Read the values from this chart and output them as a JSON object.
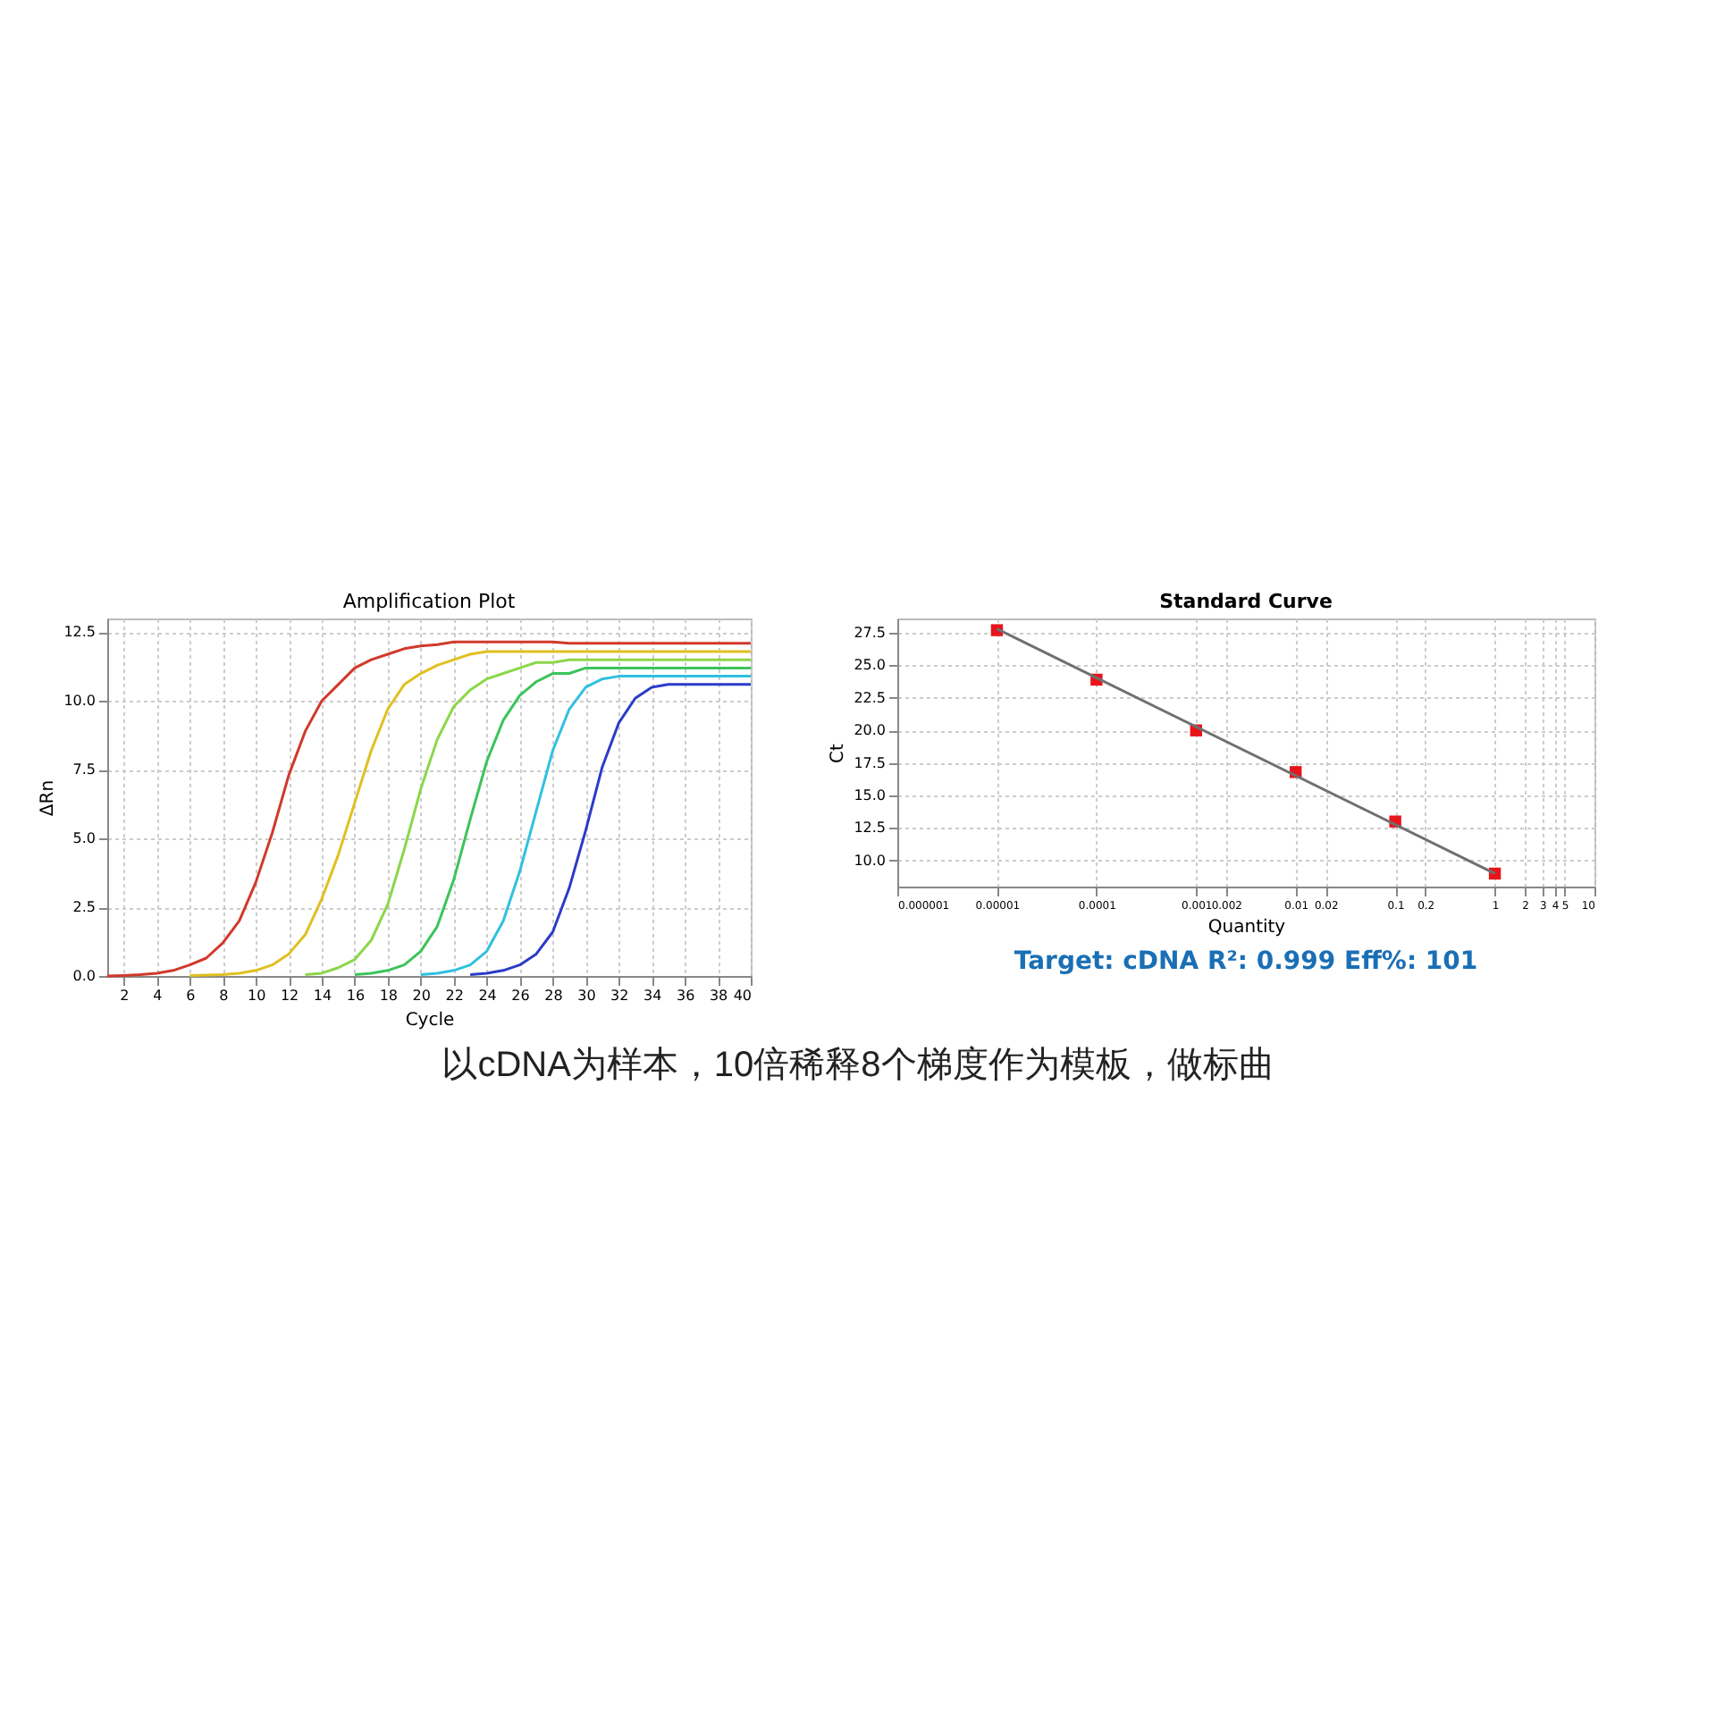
{
  "chart_data": [
    {
      "type": "line",
      "title": "Amplification Plot",
      "xlabel": "Cycle",
      "ylabel": "ΔRn",
      "grid": true,
      "marker": "none",
      "line_style": "solid",
      "x": [
        1,
        2,
        3,
        4,
        5,
        6,
        7,
        8,
        9,
        10,
        11,
        12,
        13,
        14,
        15,
        16,
        17,
        18,
        19,
        20,
        21,
        22,
        23,
        24,
        25,
        26,
        27,
        28,
        29,
        30,
        31,
        32,
        33,
        34,
        35,
        36,
        37,
        38,
        39,
        40
      ],
      "xlim": [
        1,
        40
      ],
      "xticks": [
        2,
        4,
        6,
        8,
        10,
        12,
        14,
        16,
        18,
        20,
        22,
        24,
        26,
        28,
        30,
        32,
        34,
        36,
        38,
        40
      ],
      "ylim": [
        0,
        13
      ],
      "yticks": [
        {
          "value": 0,
          "label": "0.0"
        },
        2.5,
        {
          "value": 5,
          "label": "5.0"
        },
        7.5,
        {
          "value": 10,
          "label": "10.0"
        },
        12.5
      ],
      "series": [
        {
          "color": "#d0392b",
          "values": [
            0,
            0.02,
            0.05,
            0.1,
            0.2,
            0.4,
            0.65,
            1.2,
            2.0,
            3.4,
            5.2,
            7.3,
            8.9,
            10.0,
            10.6,
            11.2,
            11.5,
            11.7,
            11.9,
            12.0,
            12.05,
            12.15,
            12.15,
            12.15,
            12.15,
            12.15,
            12.15,
            12.15,
            12.1,
            12.1,
            12.1,
            12.1,
            12.1,
            12.1,
            12.1,
            12.1,
            12.1,
            12.1,
            12.1,
            12.1
          ]
        },
        {
          "color": "#e0c020",
          "values": [
            null,
            null,
            null,
            null,
            null,
            0.02,
            0.03,
            0.05,
            0.1,
            0.2,
            0.4,
            0.8,
            1.5,
            2.8,
            4.4,
            6.3,
            8.2,
            9.7,
            10.6,
            11.0,
            11.3,
            11.5,
            11.7,
            11.8,
            11.8,
            11.8,
            11.8,
            11.8,
            11.8,
            11.8,
            11.8,
            11.8,
            11.8,
            11.8,
            11.8,
            11.8,
            11.8,
            11.8,
            11.8,
            11.8
          ]
        },
        {
          "color": "#8cd64a",
          "values": [
            null,
            null,
            null,
            null,
            null,
            null,
            null,
            null,
            null,
            null,
            null,
            null,
            0.05,
            0.1,
            0.3,
            0.6,
            1.3,
            2.6,
            4.6,
            6.8,
            8.6,
            9.8,
            10.4,
            10.8,
            11.0,
            11.2,
            11.4,
            11.4,
            11.5,
            11.5,
            11.5,
            11.5,
            11.5,
            11.5,
            11.5,
            11.5,
            11.5,
            11.5,
            11.5,
            11.5
          ]
        },
        {
          "color": "#3cc45a",
          "values": [
            null,
            null,
            null,
            null,
            null,
            null,
            null,
            null,
            null,
            null,
            null,
            null,
            null,
            null,
            null,
            0.05,
            0.1,
            0.2,
            0.4,
            0.9,
            1.8,
            3.5,
            5.7,
            7.8,
            9.3,
            10.2,
            10.7,
            11.0,
            11.0,
            11.2,
            11.2,
            11.2,
            11.2,
            11.2,
            11.2,
            11.2,
            11.2,
            11.2,
            11.2,
            11.2
          ]
        },
        {
          "color": "#30c0e0",
          "values": [
            null,
            null,
            null,
            null,
            null,
            null,
            null,
            null,
            null,
            null,
            null,
            null,
            null,
            null,
            null,
            null,
            null,
            null,
            null,
            0.05,
            0.1,
            0.2,
            0.4,
            0.9,
            2.0,
            3.8,
            6.0,
            8.2,
            9.7,
            10.5,
            10.8,
            10.9,
            10.9,
            10.9,
            10.9,
            10.9,
            10.9,
            10.9,
            10.9,
            10.9
          ]
        },
        {
          "color": "#2a3cc8",
          "values": [
            null,
            null,
            null,
            null,
            null,
            null,
            null,
            null,
            null,
            null,
            null,
            null,
            null,
            null,
            null,
            null,
            null,
            null,
            null,
            null,
            null,
            null,
            0.05,
            0.1,
            0.2,
            0.4,
            0.8,
            1.6,
            3.2,
            5.3,
            7.6,
            9.2,
            10.1,
            10.5,
            10.6,
            10.6,
            10.6,
            10.6,
            10.6,
            10.6
          ]
        }
      ]
    },
    {
      "type": "scatter",
      "title": "Standard Curve",
      "xlabel": "Quantity",
      "ylabel": "Ct",
      "grid": true,
      "log": "x",
      "xlim": [
        1e-06,
        10
      ],
      "xticks": [
        {
          "value": 1e-06,
          "label": "0.000001"
        },
        {
          "value": 1e-05,
          "label": "0.00001"
        },
        0.0001,
        0.001,
        0.002,
        0.01,
        0.02,
        0.1,
        0.2,
        1,
        2,
        3,
        4,
        5,
        10
      ],
      "ylim": [
        8,
        28.6
      ],
      "yticks": [
        {
          "value": 10,
          "label": "10.0"
        },
        12.5,
        {
          "value": 15,
          "label": "15.0"
        },
        17.5,
        {
          "value": 20,
          "label": "20.0"
        },
        22.5,
        {
          "value": 25,
          "label": "25.0"
        },
        27.5
      ],
      "series": [
        {
          "type": "scatter",
          "marker": "square",
          "color": "#e8141c",
          "x": [
            1e-05,
            0.0001,
            0.001,
            0.01,
            0.1,
            1
          ],
          "values": [
            27.7,
            23.9,
            20.0,
            16.8,
            13.0,
            9.0
          ]
        },
        {
          "type": "line",
          "color": "#707070",
          "x": [
            1e-05,
            1
          ],
          "values": [
            27.8,
            9.0
          ]
        }
      ],
      "annotations": [
        "Target: cDNA  R²: 0.999  Eff%: 101",
        "以cDNA为样本，10倍稀释8个梯度作为模板，做标曲"
      ]
    }
  ]
}
